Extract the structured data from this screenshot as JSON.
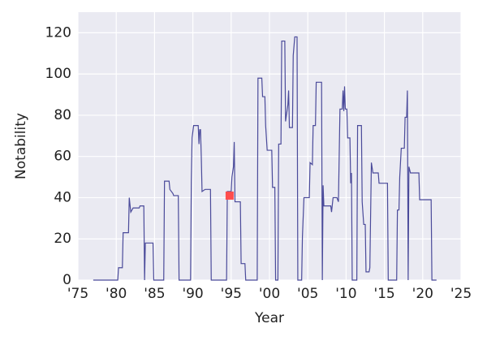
{
  "chart_data": {
    "type": "line",
    "xlabel": "Year",
    "ylabel": "Notability",
    "x": [
      1977,
      1980.2,
      1980.3,
      1980.8,
      1980.9,
      1981.6,
      1981.7,
      1981.9,
      1982.2,
      1983.0,
      1983.1,
      1983.6,
      1983.7,
      1983.8,
      1984.8,
      1984.9,
      1986.2,
      1986.3,
      1986.9,
      1987.0,
      1987.4,
      1987.5,
      1988.1,
      1988.2,
      1989.7,
      1989.8,
      1989.9,
      1990.1,
      1990.7,
      1990.8,
      1990.9,
      1991.0,
      1991.1,
      1991.2,
      1991.6,
      1992.3,
      1992.4,
      1994.4,
      1994.5,
      1995.0,
      1995.1,
      1995.3,
      1995.4,
      1995.5,
      1996.2,
      1996.3,
      1996.8,
      1996.9,
      1998.4,
      1998.5,
      1999.0,
      1999.1,
      1999.4,
      1999.5,
      1999.7,
      2000.3,
      2000.4,
      2000.7,
      2000.8,
      2001.1,
      2001.2,
      2001.5,
      2001.6,
      2002.0,
      2002.1,
      2002.4,
      2002.5,
      2002.6,
      2003.0,
      2003.1,
      2003.3,
      2003.6,
      2003.7,
      2004.2,
      2004.3,
      2004.5,
      2005.2,
      2005.3,
      2005.6,
      2005.7,
      2006.0,
      2006.1,
      2006.8,
      2006.9,
      2007.0,
      2007.1,
      2008.0,
      2008.1,
      2008.3,
      2008.8,
      2009.0,
      2009.2,
      2009.5,
      2009.6,
      2009.7,
      2009.8,
      2009.9,
      2010.1,
      2010.2,
      2010.5,
      2010.6,
      2010.7,
      2010.8,
      2011.4,
      2011.5,
      2012.0,
      2012.1,
      2012.3,
      2012.5,
      2012.6,
      2013.0,
      2013.1,
      2013.3,
      2013.5,
      2014.2,
      2014.3,
      2015.4,
      2015.5,
      2016.6,
      2016.7,
      2016.9,
      2017.0,
      2017.2,
      2017.6,
      2017.7,
      2017.9,
      2018.0,
      2018.1,
      2018.2,
      2018.4,
      2019.5,
      2019.6,
      2021.1,
      2021.2,
      2021.8
    ],
    "series": [
      {
        "color": "#4a4a9a",
        "values": [
          0,
          0,
          6,
          6,
          23,
          23,
          40,
          33,
          35,
          35,
          36,
          36,
          0,
          18,
          18,
          0,
          0,
          48,
          48,
          44,
          42,
          41,
          41,
          0,
          0,
          48,
          69,
          75,
          75,
          66,
          73,
          73,
          60,
          43,
          44,
          44,
          0,
          0,
          43,
          43,
          50,
          55,
          67,
          38,
          38,
          8,
          8,
          0,
          0,
          98,
          98,
          89,
          89,
          75,
          63,
          63,
          45,
          45,
          0,
          0,
          66,
          66,
          116,
          116,
          77,
          85,
          92,
          74,
          74,
          109,
          118,
          118,
          0,
          0,
          21,
          40,
          40,
          57,
          56,
          75,
          75,
          96,
          96,
          0,
          46,
          36,
          36,
          33,
          40,
          40,
          38,
          83,
          83,
          92,
          82,
          94,
          83,
          83,
          69,
          69,
          47,
          52,
          0,
          0,
          75,
          75,
          38,
          27,
          27,
          4,
          4,
          6,
          57,
          52,
          52,
          47,
          47,
          0,
          0,
          34,
          34,
          50,
          64,
          64,
          79,
          79,
          92,
          0,
          55,
          52,
          52,
          39,
          39,
          0,
          0
        ]
      }
    ],
    "highlight": {
      "x": 1994.8,
      "y": 41,
      "color": "#ff4d4d"
    },
    "xlim": [
      1975,
      2025
    ],
    "xticks": [
      {
        "value": 1975,
        "label": "'75"
      },
      {
        "value": 1980,
        "label": "'80"
      },
      {
        "value": 1985,
        "label": "'85"
      },
      {
        "value": 1990,
        "label": "'90"
      },
      {
        "value": 1995,
        "label": "'95"
      },
      {
        "value": 2000,
        "label": "'00"
      },
      {
        "value": 2005,
        "label": "'05"
      },
      {
        "value": 2010,
        "label": "'10"
      },
      {
        "value": 2015,
        "label": "'15"
      },
      {
        "value": 2020,
        "label": "'20"
      },
      {
        "value": 2025,
        "label": "'25"
      }
    ],
    "ylim": [
      0,
      130
    ],
    "yticks": [
      0,
      20,
      40,
      60,
      80,
      100,
      120
    ],
    "grid": true,
    "background": "#eaeaf2"
  }
}
